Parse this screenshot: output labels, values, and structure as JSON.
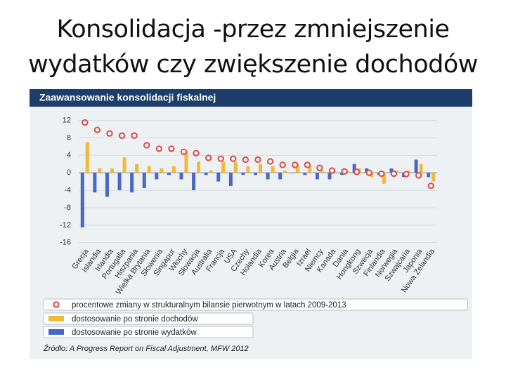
{
  "slide_title": [
    "Konsolidacja -przez zmniejszenie",
    "wydatków czy zwiększenie dochodów"
  ],
  "chart_data": {
    "type": "bar",
    "title": "Zaawansowanie konsolidacji fiskalnej",
    "categories": [
      "Grecja",
      "Islandia",
      "Irlandia",
      "Portugalia",
      "Hiszpania",
      "Wielka Brytania",
      "Słowenia",
      "Singapur",
      "Włochy",
      "Słowacja",
      "Australia",
      "Francja",
      "USA",
      "Czechy",
      "Holandia",
      "Korea",
      "Austria",
      "Belgia",
      "Izrael",
      "Niemcy",
      "Kanada",
      "Dania",
      "Hongkong",
      "Szwecja",
      "Finlandia",
      "Norwegia",
      "Szwajcaria",
      "Japonia",
      "Nowa Zelandia"
    ],
    "series": [
      {
        "name": "procentowe zmiany w strukturalnym bilansie pierwotnym w latach 2009-2013",
        "kind": "marker",
        "color": "#d9534f",
        "values": [
          11.5,
          9.8,
          9,
          8.5,
          8.5,
          6.3,
          5.5,
          5.5,
          4.8,
          4.5,
          3.4,
          3.2,
          3.2,
          3,
          3,
          2.6,
          1.8,
          1.8,
          1.8,
          1.1,
          0.5,
          0.3,
          0.2,
          0,
          -0.2,
          -0.2,
          -0.3,
          -0.6,
          -3
        ]
      },
      {
        "name": "dostosowanie po stronie dochodów",
        "kind": "bar",
        "color": "#f0b93a",
        "values": [
          7,
          1,
          1,
          3.5,
          2,
          1.5,
          1,
          1.5,
          5,
          2.5,
          0.5,
          2.5,
          2.5,
          1.5,
          2,
          1.5,
          0.5,
          2,
          1.5,
          0.5,
          0.5,
          0.5,
          1,
          -1,
          -2.5,
          0.5,
          0.5,
          2,
          -2
        ]
      },
      {
        "name": "dostosowanie po stronie wydatków",
        "kind": "bar",
        "color": "#4a67c4",
        "values": [
          -12.5,
          -4.5,
          -5.5,
          -4,
          -4.5,
          -3.5,
          -1.5,
          -0.5,
          -1.5,
          -4,
          -0.5,
          -2,
          -3,
          -0.5,
          -0.5,
          -1.5,
          -1.5,
          0,
          -0.5,
          -1.5,
          -1.5,
          -0.5,
          2,
          1,
          -0.5,
          1,
          -1,
          3,
          -1
        ]
      }
    ],
    "ylim": [
      -17,
      14
    ],
    "yticks": [
      12,
      8,
      4,
      0,
      -4,
      -8,
      -12,
      -16
    ],
    "grid": true,
    "source": "Źródło: A Progress Report on Fiscal Adjustment, MFW 2012"
  }
}
